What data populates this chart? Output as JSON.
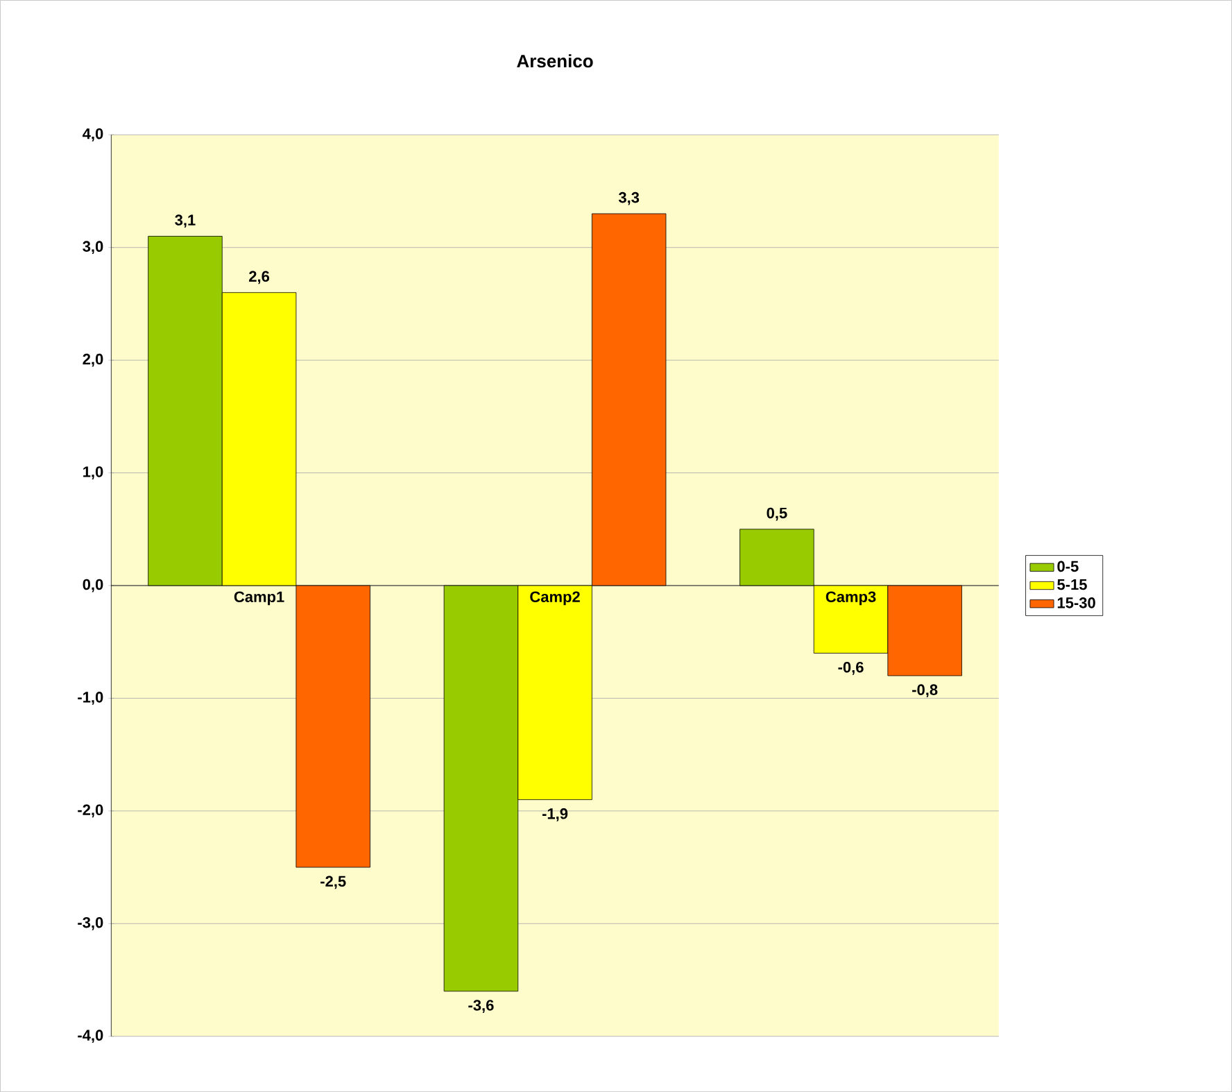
{
  "chart_data": {
    "type": "bar",
    "title": "Arsenico",
    "categories": [
      "Camp1",
      "Camp2",
      "Camp3"
    ],
    "series": [
      {
        "name": "0-5",
        "color": "#99cc00",
        "values": [
          3.1,
          -3.6,
          0.5
        ],
        "value_labels": [
          "3,1",
          "-3,6",
          "0,5"
        ]
      },
      {
        "name": "5-15",
        "color": "#ffff00",
        "values": [
          2.6,
          -1.9,
          -0.6
        ],
        "value_labels": [
          "2,6",
          "-1,9",
          "-0,6"
        ]
      },
      {
        "name": "15-30",
        "color": "#ff6600",
        "values": [
          -2.5,
          3.3,
          -0.8
        ],
        "value_labels": [
          "-2,5",
          "3,3",
          "-0,8"
        ]
      }
    ],
    "ylim": [
      -4,
      4
    ],
    "yticks": [
      {
        "value": -4,
        "label": "-4,0"
      },
      {
        "value": -3,
        "label": "-3,0"
      },
      {
        "value": -2,
        "label": "-2,0"
      },
      {
        "value": -1,
        "label": "-1,0"
      },
      {
        "value": 0,
        "label": "0,0"
      },
      {
        "value": 1,
        "label": "1,0"
      },
      {
        "value": 2,
        "label": "2,0"
      },
      {
        "value": 3,
        "label": "3,0"
      },
      {
        "value": 4,
        "label": "4,0"
      }
    ],
    "grid": "y",
    "legend": "right"
  }
}
